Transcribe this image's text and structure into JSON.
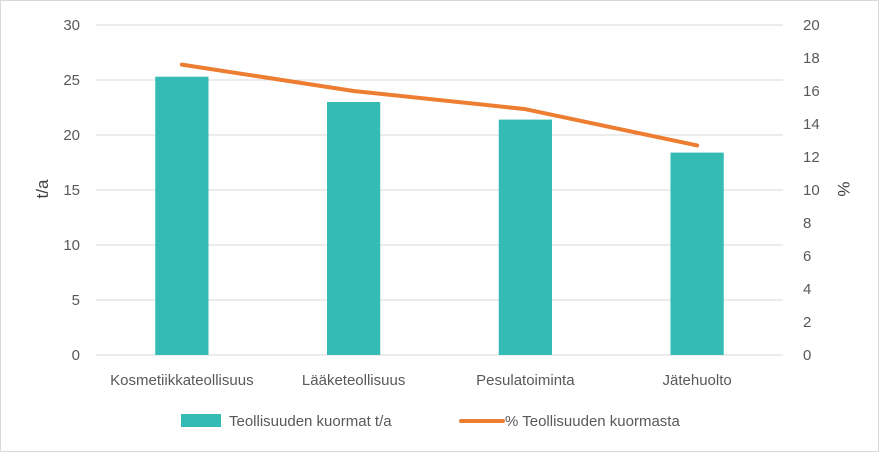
{
  "chart_data": {
    "type": "bar",
    "categories": [
      "Kosmetiikkateollisuus",
      "Lääketeollisuus",
      "Pesulatoiminta",
      "Jätehuolto"
    ],
    "series": [
      {
        "name": "Teollisuuden kuormat t/a",
        "type": "bar",
        "axis": "left",
        "values": [
          25.3,
          23.0,
          21.4,
          18.4
        ]
      },
      {
        "name": "% Teollisuuden kuormasta",
        "type": "line",
        "axis": "right",
        "values": [
          17.6,
          16.0,
          14.9,
          12.7
        ]
      }
    ],
    "ylabel": "t/a",
    "ylabel_right": "%",
    "ylim": [
      0,
      30
    ],
    "ylim_right": [
      0,
      20
    ],
    "yticks": [
      "0",
      "5",
      "10",
      "15",
      "20",
      "25",
      "30"
    ],
    "yticks_right": [
      "0",
      "2",
      "4",
      "6",
      "8",
      "10",
      "12",
      "14",
      "16",
      "18",
      "20"
    ],
    "grid": true,
    "legend_position": "bottom",
    "colors": {
      "bar": "#34bcb4",
      "line": "#ed7d31",
      "grid": "#d9d9d9",
      "text": "#595959"
    }
  }
}
